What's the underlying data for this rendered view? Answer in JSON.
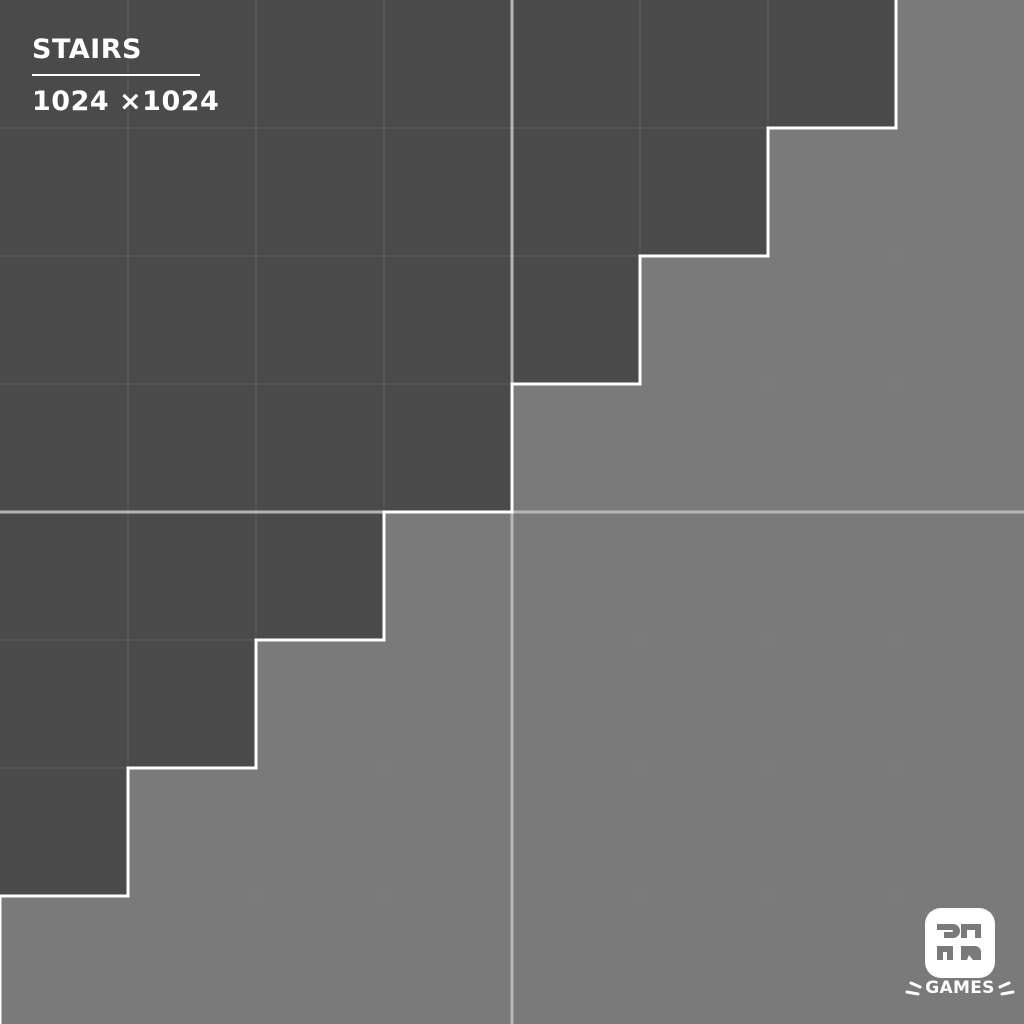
{
  "title": "STAIRS",
  "size_label": "1024 ×1024",
  "brand": {
    "name": "GAMES",
    "logo_icon": "baba-games-logo-icon"
  },
  "board": {
    "columns": 8,
    "rows": 8,
    "wall_color": "#4a4a4a",
    "floor_color": "#7a7a7a",
    "grid_color": "#5c5c5c",
    "grid_color_light": "#8a8a8a",
    "divider_color": "#b5b5b5",
    "outline_color": "#ffffff",
    "cells": [
      "1111111",
      "111111",
      "11111",
      "1111",
      "111",
      "11",
      "1",
      ""
    ]
  }
}
